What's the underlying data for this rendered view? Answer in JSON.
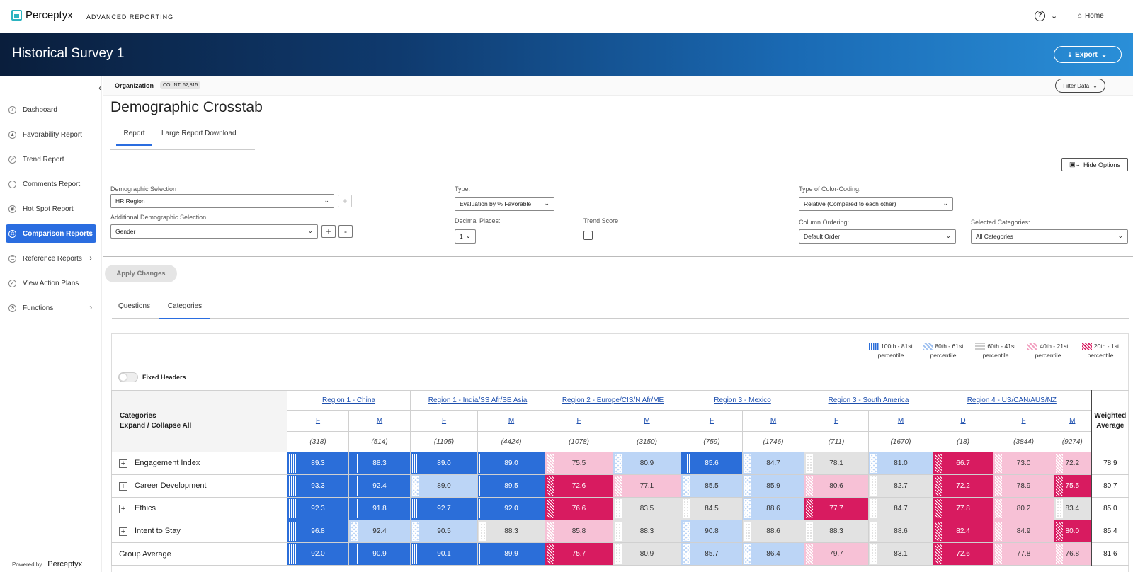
{
  "brand": {
    "logo": "Perceptyx",
    "product": "ADVANCED REPORTING"
  },
  "topnav": {
    "help": "?",
    "home": "Home"
  },
  "banner": {
    "title": "Historical Survey 1",
    "export": "Export"
  },
  "sidebar": {
    "items": [
      {
        "label": "Dashboard"
      },
      {
        "label": "Favorability Report"
      },
      {
        "label": "Trend Report"
      },
      {
        "label": "Comments Report"
      },
      {
        "label": "Hot Spot Report"
      },
      {
        "label": "Comparison Reports"
      },
      {
        "label": "Reference Reports"
      },
      {
        "label": "View Action Plans"
      },
      {
        "label": "Functions"
      }
    ],
    "powered_by": "Powered by",
    "powered_brand": "Perceptyx"
  },
  "orgbar": {
    "name": "Organization",
    "count": "COUNT: 62,815",
    "filter": "Filter Data"
  },
  "page": {
    "title": "Demographic Crosstab",
    "tabs": [
      "Report",
      "Large Report Download"
    ],
    "hide_options": "Hide Options"
  },
  "filters": {
    "demo_label": "Demographic Selection",
    "demo_value": "HR Region",
    "add_demo_label": "Additional Demographic Selection",
    "add_demo_value": "Gender",
    "type_label": "Type:",
    "type_value": "Evaluation by % Favorable",
    "decimal_label": "Decimal Places:",
    "decimal_value": "1",
    "trend_label": "Trend Score",
    "color_label": "Type of Color-Coding:",
    "color_value": "Relative (Compared to each other)",
    "order_label": "Column Ordering:",
    "order_value": "Default Order",
    "cats_label": "Selected Categories:",
    "cats_value": "All Categories",
    "plus": "+",
    "minus": "-"
  },
  "apply": "Apply Changes",
  "view_tabs": [
    "Questions",
    "Categories"
  ],
  "legend": [
    {
      "range": "100th - 81st",
      "unit": "percentile",
      "color": "#2b6ed9"
    },
    {
      "range": "80th - 61st",
      "unit": "percentile",
      "color": "#bcd5f6"
    },
    {
      "range": "60th - 41st",
      "unit": "percentile",
      "color": "#e2e2e2"
    },
    {
      "range": "40th - 21st",
      "unit": "percentile",
      "color": "#f7c1d6"
    },
    {
      "range": "20th - 1st",
      "unit": "percentile",
      "color": "#d81b60"
    }
  ],
  "fixed_headers": "Fixed Headers",
  "table": {
    "corner": [
      "Categories",
      "Expand / Collapse All"
    ],
    "weighted": [
      "Weighted",
      "Average"
    ],
    "regions": [
      "Region 1 - China",
      "Region 1 - India/SS Afr/SE Asia",
      "Region 2 - Europe/CIS/N Afr/ME",
      "Region 3 - Mexico",
      "Region 3 - South America",
      "Region 4 - US/CAN/AUS/NZ"
    ],
    "genders": [
      "F",
      "M",
      "F",
      "M",
      "F",
      "M",
      "F",
      "M",
      "F",
      "M",
      "D",
      "F",
      "M"
    ],
    "counts": [
      "(318)",
      "(514)",
      "(1195)",
      "(4424)",
      "(1078)",
      "(3150)",
      "(759)",
      "(1746)",
      "(711)",
      "(1670)",
      "(18)",
      "(3844)",
      "(9274)"
    ],
    "rows": [
      {
        "label": "Engagement Index",
        "values": [
          "89.3",
          "88.3",
          "89.0",
          "89.0",
          "75.5",
          "80.9",
          "85.6",
          "84.7",
          "78.1",
          "81.0",
          "66.7",
          "73.0",
          "72.2"
        ],
        "tiers": [
          1,
          1,
          1,
          1,
          4,
          2,
          1,
          2,
          3,
          2,
          5,
          4,
          4
        ],
        "avg": "78.9"
      },
      {
        "label": "Career Development",
        "values": [
          "93.3",
          "92.4",
          "89.0",
          "89.5",
          "72.6",
          "77.1",
          "85.5",
          "85.9",
          "80.6",
          "82.7",
          "72.2",
          "78.9",
          "75.5"
        ],
        "tiers": [
          1,
          1,
          2,
          1,
          5,
          4,
          2,
          2,
          4,
          3,
          5,
          4,
          5
        ],
        "avg": "80.7"
      },
      {
        "label": "Ethics",
        "values": [
          "92.3",
          "91.8",
          "92.7",
          "92.0",
          "76.6",
          "83.5",
          "84.5",
          "88.6",
          "77.7",
          "84.7",
          "77.8",
          "80.2",
          "83.4"
        ],
        "tiers": [
          1,
          1,
          1,
          1,
          5,
          3,
          3,
          2,
          5,
          3,
          5,
          4,
          3
        ],
        "avg": "85.0"
      },
      {
        "label": "Intent to Stay",
        "values": [
          "96.8",
          "92.4",
          "90.5",
          "88.3",
          "85.8",
          "88.3",
          "90.8",
          "88.6",
          "88.3",
          "88.6",
          "82.4",
          "84.9",
          "80.0"
        ],
        "tiers": [
          1,
          2,
          2,
          3,
          4,
          3,
          2,
          3,
          3,
          3,
          5,
          4,
          5
        ],
        "avg": "85.4"
      }
    ],
    "group": {
      "label": "Group Average",
      "values": [
        "92.0",
        "90.9",
        "90.1",
        "89.9",
        "75.7",
        "80.9",
        "85.7",
        "86.4",
        "79.7",
        "83.1",
        "72.6",
        "77.8",
        "76.8"
      ],
      "tiers": [
        1,
        1,
        1,
        1,
        5,
        3,
        2,
        2,
        4,
        3,
        5,
        4,
        4
      ],
      "avg": "81.6"
    }
  }
}
